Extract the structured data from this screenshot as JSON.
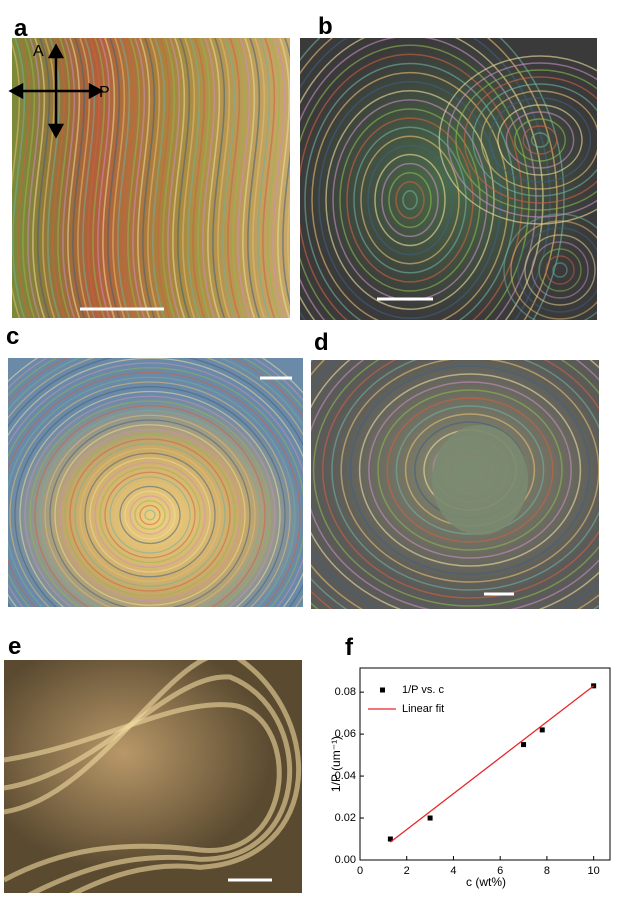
{
  "panel_labels": [
    "a",
    "b",
    "c",
    "d",
    "e",
    "f"
  ],
  "polarizer_labels": {
    "analyzer": "A",
    "polarizer": "P"
  },
  "chart_data": {
    "type": "scatter",
    "x_label": "c (wt%)",
    "y_label": "1/P (um⁻¹)",
    "xlim": [
      0,
      10.7
    ],
    "xticks": [
      0,
      2,
      4,
      6,
      8,
      10
    ],
    "ylim": [
      0,
      0.0915
    ],
    "yticks": [
      {
        "value": 0,
        "label": "0.00"
      },
      0.02,
      0.04,
      0.06,
      0.08
    ],
    "legend": "upper left",
    "series": [
      {
        "name": "1/P vs. c",
        "type": "scatter",
        "color": "#000000",
        "x": [
          1.3,
          3.0,
          7.0,
          7.8,
          10.0
        ],
        "values": [
          0.01,
          0.02,
          0.055,
          0.062,
          0.083
        ]
      },
      {
        "name": "Linear fit",
        "type": "line",
        "color": "#e8282a",
        "x": [
          1.3,
          10.0
        ],
        "values": [
          0.0085,
          0.083
        ]
      }
    ]
  }
}
